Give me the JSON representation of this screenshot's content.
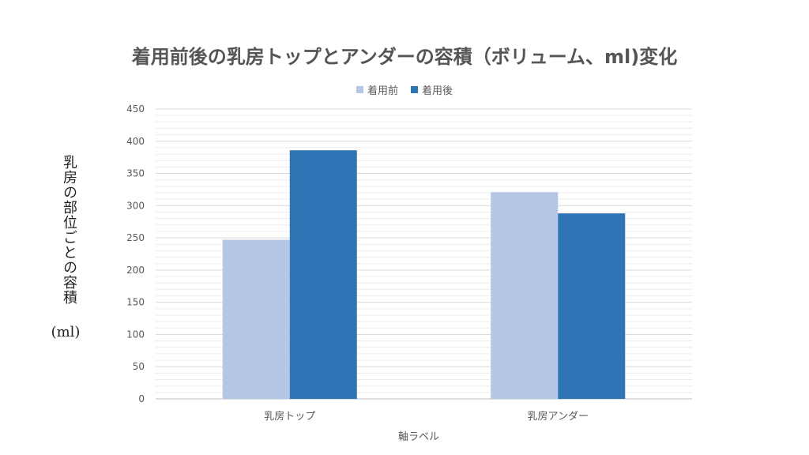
{
  "chart_data": {
    "type": "bar",
    "title": "着用前後の乳房トップとアンダーの容積（ボリューム、ml)変化",
    "categories": [
      "乳房トップ",
      "乳房アンダー"
    ],
    "series": [
      {
        "name": "着用前",
        "values": [
          247,
          321
        ],
        "color": "#b4c7e7"
      },
      {
        "name": "着用後",
        "values": [
          386,
          288
        ],
        "color": "#2e75b6"
      }
    ],
    "ylabel": "乳房の部位ごとの容積",
    "ylabel_unit": "(ml)",
    "xlabel": "軸ラベル",
    "ylim": [
      0,
      450
    ],
    "y_ticks": [
      "0",
      "50",
      "100",
      "150",
      "200",
      "250",
      "300",
      "350",
      "400",
      "450"
    ],
    "grid": true,
    "legend_position": "top"
  }
}
